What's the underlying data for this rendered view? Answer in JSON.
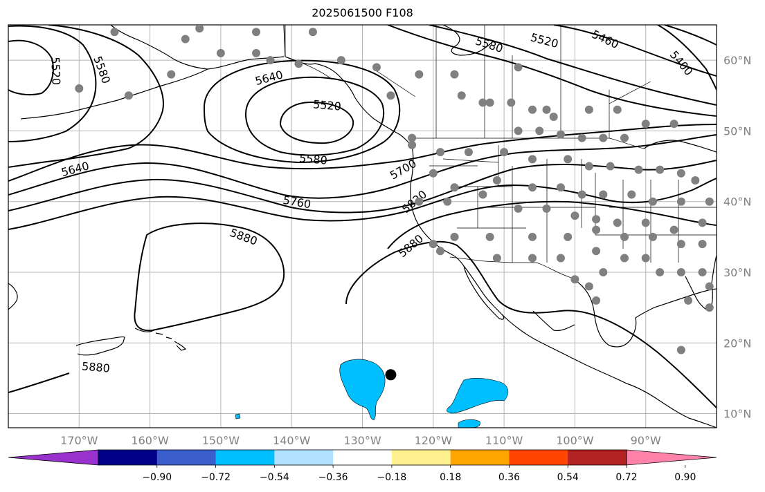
{
  "title": "2025061500 F108",
  "map": {
    "lon_range": [
      -180,
      -80
    ],
    "lat_range": [
      8,
      65
    ],
    "lon_ticks": [
      {
        "lon": -170,
        "label": "170°W"
      },
      {
        "lon": -160,
        "label": "160°W"
      },
      {
        "lon": -150,
        "label": "150°W"
      },
      {
        "lon": -140,
        "label": "140°W"
      },
      {
        "lon": -130,
        "label": "130°W"
      },
      {
        "lon": -120,
        "label": "120°W"
      },
      {
        "lon": -110,
        "label": "110°W"
      },
      {
        "lon": -100,
        "label": "100°W"
      },
      {
        "lon": -90,
        "label": "90°W"
      }
    ],
    "lat_ticks": [
      {
        "lat": 60,
        "label": "60°N"
      },
      {
        "lat": 50,
        "label": "50°N"
      },
      {
        "lat": 40,
        "label": "40°N"
      },
      {
        "lat": 30,
        "label": "30°N"
      },
      {
        "lat": 20,
        "label": "20°N"
      },
      {
        "lat": 10,
        "label": "10°N"
      }
    ],
    "contour_labels": [
      "5400",
      "5460",
      "5520",
      "5580",
      "5640",
      "5700",
      "5760",
      "5820",
      "5880"
    ],
    "highlighted_point": {
      "lon": -126,
      "lat": 15.5,
      "color": "#000000"
    },
    "station_color": "#808080",
    "station_points": [
      [
        -165,
        64
      ],
      [
        -155,
        63
      ],
      [
        -153,
        64.5
      ],
      [
        -145,
        64
      ],
      [
        -137,
        64
      ],
      [
        -145,
        61
      ],
      [
        -139,
        59.5
      ],
      [
        -133,
        60
      ],
      [
        -128,
        59
      ],
      [
        -122,
        58
      ],
      [
        -117,
        58
      ],
      [
        -108,
        59
      ],
      [
        -126,
        55
      ],
      [
        -116,
        55
      ],
      [
        -113,
        54
      ],
      [
        -112,
        54
      ],
      [
        -109,
        54
      ],
      [
        -106,
        53
      ],
      [
        -104,
        53
      ],
      [
        -103,
        52
      ],
      [
        -98,
        53
      ],
      [
        -94,
        53
      ],
      [
        -90,
        51
      ],
      [
        -86,
        51
      ],
      [
        -108,
        50
      ],
      [
        -105,
        50
      ],
      [
        -102,
        49.5
      ],
      [
        -99,
        49
      ],
      [
        -96,
        49
      ],
      [
        -93,
        49
      ],
      [
        -123,
        49
      ],
      [
        -123,
        48
      ],
      [
        -119,
        47
      ],
      [
        -115,
        47
      ],
      [
        -110,
        47
      ],
      [
        -106,
        46
      ],
      [
        -101,
        46
      ],
      [
        -98,
        45
      ],
      [
        -95,
        45
      ],
      [
        -91,
        44.5
      ],
      [
        -88,
        44.5
      ],
      [
        -85,
        44
      ],
      [
        -83,
        43
      ],
      [
        -120,
        44
      ],
      [
        -117,
        42
      ],
      [
        -111,
        43
      ],
      [
        -106,
        42
      ],
      [
        -102,
        42
      ],
      [
        -99,
        41
      ],
      [
        -96,
        41
      ],
      [
        -92,
        41
      ],
      [
        -89,
        40
      ],
      [
        -85,
        40
      ],
      [
        -81,
        40
      ],
      [
        -122,
        40
      ],
      [
        -118,
        40
      ],
      [
        -113,
        41
      ],
      [
        -108,
        39
      ],
      [
        -104,
        39
      ],
      [
        -100,
        38
      ],
      [
        -97,
        37.5
      ],
      [
        -94,
        37
      ],
      [
        -90,
        37
      ],
      [
        -86,
        36
      ],
      [
        -82,
        37
      ],
      [
        -117,
        35
      ],
      [
        -112,
        35
      ],
      [
        -106,
        35
      ],
      [
        -101,
        35
      ],
      [
        -97,
        36
      ],
      [
        -93,
        35
      ],
      [
        -89,
        35
      ],
      [
        -85,
        34
      ],
      [
        -82,
        34
      ],
      [
        -119,
        33
      ],
      [
        -111,
        32
      ],
      [
        -106,
        32
      ],
      [
        -102,
        32
      ],
      [
        -97,
        33
      ],
      [
        -93,
        32
      ],
      [
        -90,
        32
      ],
      [
        -88,
        30
      ],
      [
        -85,
        30
      ],
      [
        -82,
        30
      ],
      [
        -81,
        28
      ],
      [
        -81,
        25
      ],
      [
        -84,
        26
      ],
      [
        -100,
        29
      ],
      [
        -97,
        26
      ],
      [
        -98,
        28
      ],
      [
        -96,
        30
      ],
      [
        -85,
        19
      ],
      [
        -170,
        56
      ],
      [
        -163,
        55
      ],
      [
        -157,
        58
      ],
      [
        -150,
        61
      ],
      [
        -143,
        60
      ],
      [
        -120,
        34
      ]
    ]
  },
  "colorbar": {
    "colors": [
      "#9932cc",
      "#00008b",
      "#3a5fcd",
      "#00bfff",
      "#b0e2ff",
      "#ffffff",
      "#fff08f",
      "#ffa500",
      "#ff4500",
      "#b22222",
      "#ff82ab"
    ],
    "tick_labels": [
      "−0.90",
      "−0.72",
      "−0.54",
      "−0.36",
      "−0.18",
      "0.18",
      "0.36",
      "0.54",
      "0.72",
      "0.90"
    ]
  }
}
